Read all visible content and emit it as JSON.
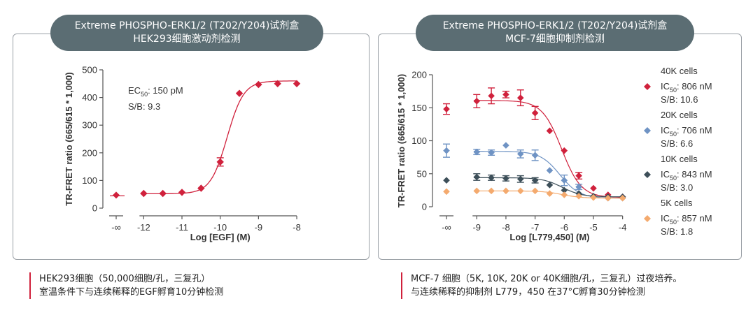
{
  "left": {
    "title_line1": "Extreme PHOSPHO-ERK1/2 (T202/Y204)试剂盒",
    "title_line2": "HEK293细胞激动剂检测",
    "caption_line1": "HEK293细胞（50,000细胞/孔，三复孔）",
    "caption_line2": "室温条件下与连续稀释的EGF孵育10分钟检测"
  },
  "right": {
    "title_line1": "Extreme PHOSPHO-ERK1/2 (T202/Y204)试剂盒",
    "title_line2": "MCF-7细胞抑制剂检测",
    "caption_line1": "MCF-7 细胞（5K, 10K, 20K or 40K细胞/孔，三复孔）过夜培养。",
    "caption_line2": "与连续稀释的抑制剂 L779，450 在37°C孵育30分钟检测"
  },
  "chart_data": [
    {
      "type": "scatter",
      "title": "Extreme PHOSPHO-ERK1/2 (T202/Y204)试剂盒 HEK293细胞激动剂检测",
      "xlabel": "Log [EGF] (M)",
      "ylabel": "TR-FRET ratio (665/615 * 1,000)",
      "xlim": [
        -12.5,
        -7.8
      ],
      "ylim": [
        0,
        500
      ],
      "x_tick_labels": [
        "-∞",
        "-12",
        "-11",
        "-10",
        "-9",
        "-8"
      ],
      "x_ticks": [
        -12,
        -11,
        -10,
        -9,
        -8
      ],
      "y_ticks": [
        0,
        100,
        200,
        300,
        400,
        500
      ],
      "neg_inf_point": {
        "x_label": "-∞",
        "y": 47
      },
      "fit": {
        "bottom": 52,
        "top": 460,
        "logEC50": -9.82,
        "hill": 2.0,
        "x_from": -12,
        "x_to": -8
      },
      "annotations": {
        "ec50_prefix": "EC",
        "ec50_sub": "50",
        "ec50_value": ": 150 pM",
        "sb": "S/B: 9.3"
      },
      "series": [
        {
          "name": "EGF",
          "color": "#d0213c",
          "marker": "diamond",
          "x": [
            -12,
            -11.5,
            -11,
            -10.5,
            -10,
            -9.5,
            -9,
            -8.5,
            -8
          ],
          "y": [
            53,
            53,
            57,
            72,
            167,
            415,
            447,
            450,
            450
          ],
          "err": [
            0,
            0,
            0,
            0,
            15,
            0,
            0,
            0,
            0
          ]
        }
      ]
    },
    {
      "type": "scatter",
      "title": "Extreme PHOSPHO-ERK1/2 (T202/Y204)试剂盒 MCF-7细胞抑制剂检测",
      "xlabel": "Log [L779,450] (M)",
      "ylabel": "TR-FRET ratio (665/615 * 1,000)",
      "xlim": [
        -9.75,
        -3.8
      ],
      "ylim": [
        0,
        200
      ],
      "x_tick_labels": [
        "-∞",
        "-9",
        "-8",
        "-7",
        "-6",
        "-5",
        "-4"
      ],
      "x_ticks": [
        -9,
        -8,
        -7,
        -6,
        -5,
        -4
      ],
      "y_ticks": [
        0,
        50,
        100,
        150,
        200
      ],
      "legend_position": "right",
      "series": [
        {
          "name": "40K cells",
          "ic50_prefix": "IC",
          "ic50_sub": "50",
          "ic50_value": ": 806 nM",
          "sb": "S/B: 10.6",
          "color": "#d0213c",
          "marker": "diamond",
          "x": [
            -9,
            -8.5,
            -8,
            -7.5,
            -7,
            -6.5,
            -6,
            -5.5,
            -5,
            -4.5,
            -4
          ],
          "y": [
            160,
            168,
            170,
            165,
            142,
            115,
            85,
            47,
            28,
            18,
            15
          ],
          "err": [
            10,
            12,
            5,
            12,
            10,
            0,
            0,
            5,
            0,
            0,
            0
          ],
          "neg_inf_y": 148,
          "neg_inf_err": 8,
          "fit": {
            "bottom": 14,
            "top": 161,
            "logIC50": -6.09,
            "hill": 1.3
          }
        },
        {
          "name": "20K cells",
          "ic50_prefix": "IC",
          "ic50_sub": "50",
          "ic50_value": ": 706 nM",
          "sb": "S/B: 6.6",
          "color": "#6f93c4",
          "marker": "diamond",
          "x": [
            -9,
            -8.5,
            -8,
            -7.5,
            -7,
            -6.5,
            -6,
            -5.5,
            -5,
            -4.5,
            -4
          ],
          "y": [
            83,
            82,
            93,
            80,
            78,
            55,
            40,
            30,
            15,
            13,
            13
          ],
          "err": [
            4,
            4,
            0,
            6,
            8,
            0,
            8,
            4,
            0,
            0,
            0
          ],
          "neg_inf_y": 85,
          "neg_inf_err": 10,
          "fit": {
            "bottom": 13,
            "top": 84,
            "logIC50": -6.15,
            "hill": 1.3
          }
        },
        {
          "name": "10K cells",
          "ic50_prefix": "IC",
          "ic50_sub": "50",
          "ic50_value": ": 843 nM",
          "sb": "S/B: 3.0",
          "color": "#3d4f59",
          "marker": "diamond",
          "x": [
            -9,
            -8.5,
            -8,
            -7.5,
            -7,
            -6.5,
            -6,
            -5.5,
            -5,
            -4.5,
            -4
          ],
          "y": [
            45,
            44,
            43,
            42,
            40,
            33,
            25,
            20,
            16,
            15,
            15
          ],
          "err": [
            5,
            4,
            4,
            5,
            4,
            0,
            0,
            0,
            0,
            0,
            0
          ],
          "neg_inf_y": 40,
          "neg_inf_err": 0,
          "fit": {
            "bottom": 15,
            "top": 44,
            "logIC50": -6.07,
            "hill": 1.3
          }
        },
        {
          "name": "5K cells",
          "ic50_prefix": "IC",
          "ic50_sub": "50",
          "ic50_value": ": 857 nM",
          "sb": "S/B: 1.8",
          "color": "#f4aa6e",
          "marker": "diamond",
          "x": [
            -9,
            -8.5,
            -8,
            -7.5,
            -7,
            -6.5,
            -6,
            -5.5,
            -5,
            -4.5,
            -4
          ],
          "y": [
            24,
            24,
            24,
            24,
            24,
            20,
            18,
            16,
            14,
            13,
            13
          ],
          "err": [
            0,
            0,
            0,
            0,
            0,
            0,
            0,
            0,
            0,
            0,
            0
          ],
          "neg_inf_y": 23,
          "neg_inf_err": 0,
          "fit": {
            "bottom": 13,
            "top": 24,
            "logIC50": -6.07,
            "hill": 1.3
          }
        }
      ]
    }
  ]
}
